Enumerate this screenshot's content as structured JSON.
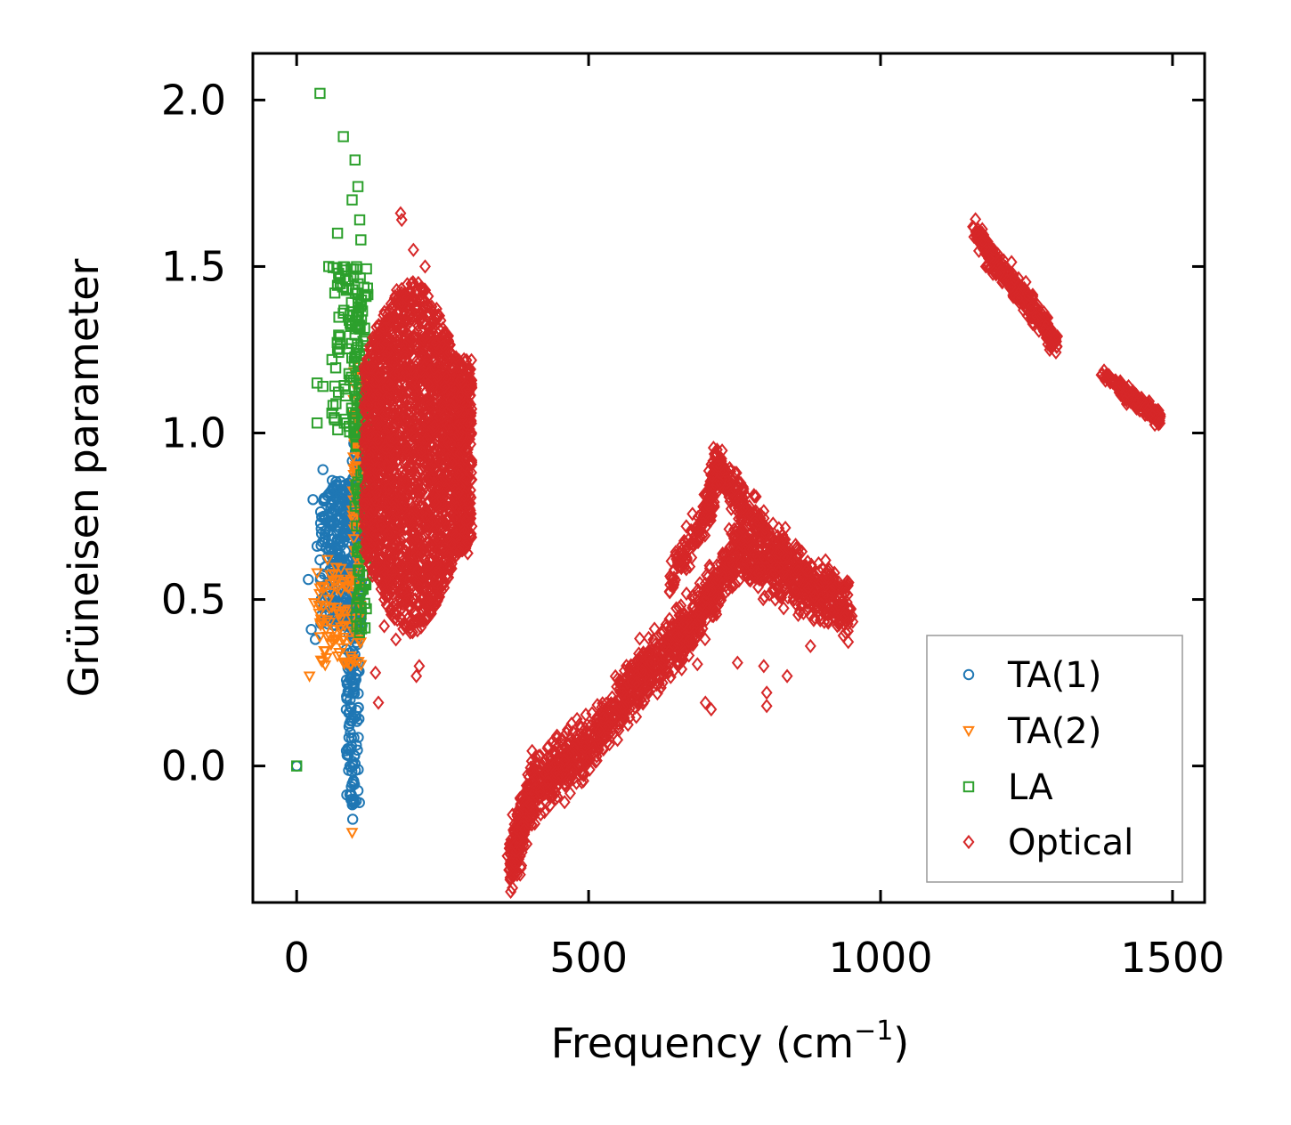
{
  "chart_data": {
    "type": "scatter",
    "title": "",
    "xlabel_main": "Frequency (cm",
    "xlabel_sup": "−1",
    "xlabel_close": ")",
    "ylabel": "Grüneisen parameter",
    "xlim": [
      -75,
      1555
    ],
    "ylim": [
      -0.41,
      2.14
    ],
    "xticks": [
      0,
      500,
      1000,
      1500
    ],
    "xtick_labels": [
      "0",
      "500",
      "1000",
      "1500"
    ],
    "yticks": [
      0.0,
      0.5,
      1.0,
      1.5,
      2.0
    ],
    "ytick_labels": [
      "0.0",
      "0.5",
      "1.0",
      "1.5",
      "2.0"
    ],
    "legend_position": "lower-right",
    "series": [
      {
        "name": "TA(1)",
        "label": "TA(1)",
        "marker": "circle",
        "color": "#1f77b4",
        "anchors": [
          {
            "x": 0,
            "y": 0.0
          },
          {
            "x": 20,
            "y": 0.56
          },
          {
            "x": 28,
            "y": 0.8
          },
          {
            "x": 35,
            "y": 0.66
          },
          {
            "x": 45,
            "y": 0.89
          },
          {
            "x": 25,
            "y": 0.41
          },
          {
            "x": 32,
            "y": 0.38
          },
          {
            "x": 50,
            "y": 0.45
          },
          {
            "x": 60,
            "y": 0.55
          },
          {
            "x": 70,
            "y": 0.74
          },
          {
            "x": 80,
            "y": 0.84
          },
          {
            "x": 85,
            "y": 0.35
          },
          {
            "x": 88,
            "y": 0.25
          },
          {
            "x": 92,
            "y": 0.1
          },
          {
            "x": 95,
            "y": -0.1
          },
          {
            "x": 96,
            "y": -0.16
          },
          {
            "x": 100,
            "y": 0.15
          },
          {
            "x": 104,
            "y": 0.97
          },
          {
            "x": 110,
            "y": 0.62
          }
        ],
        "bands": [
          {
            "x0": 40,
            "x1": 112,
            "y0": 0.42,
            "y1": 0.86,
            "n": 340
          },
          {
            "x0": 85,
            "x1": 108,
            "y0": -0.12,
            "y1": 0.45,
            "n": 120
          },
          {
            "x0": 95,
            "x1": 112,
            "y0": 0.7,
            "y1": 0.98,
            "n": 70
          }
        ]
      },
      {
        "name": "TA(2)",
        "label": "TA(2)",
        "marker": "triangle-down",
        "color": "#ff7f0e",
        "anchors": [
          {
            "x": 22,
            "y": 0.27
          },
          {
            "x": 30,
            "y": 0.49
          },
          {
            "x": 35,
            "y": 0.58
          },
          {
            "x": 40,
            "y": 0.43
          },
          {
            "x": 55,
            "y": 0.5
          },
          {
            "x": 65,
            "y": 0.38
          },
          {
            "x": 70,
            "y": 0.33
          },
          {
            "x": 75,
            "y": 0.44
          },
          {
            "x": 95,
            "y": -0.2
          },
          {
            "x": 100,
            "y": 0.88
          },
          {
            "x": 105,
            "y": 1.1
          },
          {
            "x": 110,
            "y": 1.17
          }
        ],
        "bands": [
          {
            "x0": 35,
            "x1": 112,
            "y0": 0.3,
            "y1": 0.62,
            "n": 90
          },
          {
            "x0": 95,
            "x1": 114,
            "y0": 0.62,
            "y1": 1.2,
            "n": 70
          }
        ]
      },
      {
        "name": "LA",
        "label": "LA",
        "marker": "square",
        "color": "#2ca02c",
        "anchors": [
          {
            "x": 0,
            "y": 0.0
          },
          {
            "x": 40,
            "y": 2.02
          },
          {
            "x": 80,
            "y": 1.89
          },
          {
            "x": 100,
            "y": 1.82
          },
          {
            "x": 105,
            "y": 1.74
          },
          {
            "x": 95,
            "y": 1.7
          },
          {
            "x": 70,
            "y": 1.6
          },
          {
            "x": 55,
            "y": 1.5
          },
          {
            "x": 75,
            "y": 1.45
          },
          {
            "x": 35,
            "y": 1.15
          },
          {
            "x": 45,
            "y": 1.14
          },
          {
            "x": 35,
            "y": 1.03
          },
          {
            "x": 65,
            "y": 1.04
          },
          {
            "x": 90,
            "y": 1.02
          },
          {
            "x": 108,
            "y": 1.64
          },
          {
            "x": 110,
            "y": 1.58
          }
        ],
        "bands": [
          {
            "x0": 60,
            "x1": 120,
            "y0": 1.0,
            "y1": 1.5,
            "n": 90
          },
          {
            "x0": 100,
            "x1": 122,
            "y0": 0.4,
            "y1": 1.45,
            "n": 130
          }
        ]
      },
      {
        "name": "Optical",
        "label": "Optical",
        "marker": "diamond",
        "color": "#d62728",
        "anchors": [
          {
            "x": 178,
            "y": 1.66
          },
          {
            "x": 180,
            "y": 1.64
          },
          {
            "x": 200,
            "y": 1.55
          },
          {
            "x": 220,
            "y": 1.5
          },
          {
            "x": 150,
            "y": 0.42
          },
          {
            "x": 170,
            "y": 0.38
          },
          {
            "x": 205,
            "y": 0.27
          },
          {
            "x": 210,
            "y": 0.3
          },
          {
            "x": 135,
            "y": 0.28
          },
          {
            "x": 140,
            "y": 0.19
          },
          {
            "x": 300,
            "y": 0.72
          },
          {
            "x": 290,
            "y": 1.13
          },
          {
            "x": 700,
            "y": 0.19
          },
          {
            "x": 710,
            "y": 0.17
          },
          {
            "x": 755,
            "y": 0.31
          },
          {
            "x": 800,
            "y": 0.3
          },
          {
            "x": 805,
            "y": 0.22
          },
          {
            "x": 805,
            "y": 0.18
          },
          {
            "x": 840,
            "y": 0.27
          },
          {
            "x": 880,
            "y": 0.36
          },
          {
            "x": 720,
            "y": 0.95
          },
          {
            "x": 365,
            "y": -0.31
          }
        ],
        "bands": [
          {
            "x0": 115,
            "x1": 300,
            "y0": 0.4,
            "y1": 1.46,
            "n": 2600,
            "shape": "lobe"
          }
        ],
        "paths": [
          {
            "points": [
              {
                "x": 365,
                "y": -0.3
              },
              {
                "x": 380,
                "y": -0.22
              },
              {
                "x": 400,
                "y": -0.08
              },
              {
                "x": 430,
                "y": -0.03
              },
              {
                "x": 470,
                "y": 0.02
              },
              {
                "x": 510,
                "y": 0.08
              },
              {
                "x": 550,
                "y": 0.18
              },
              {
                "x": 590,
                "y": 0.27
              },
              {
                "x": 640,
                "y": 0.35
              },
              {
                "x": 680,
                "y": 0.43
              },
              {
                "x": 720,
                "y": 0.55
              },
              {
                "x": 760,
                "y": 0.66
              },
              {
                "x": 800,
                "y": 0.6
              },
              {
                "x": 850,
                "y": 0.56
              },
              {
                "x": 900,
                "y": 0.52
              },
              {
                "x": 950,
                "y": 0.47
              }
            ],
            "spread": 0.085,
            "n": 1700
          },
          {
            "points": [
              {
                "x": 640,
                "y": 0.55
              },
              {
                "x": 700,
                "y": 0.75
              },
              {
                "x": 720,
                "y": 0.9
              },
              {
                "x": 760,
                "y": 0.8
              },
              {
                "x": 820,
                "y": 0.66
              },
              {
                "x": 880,
                "y": 0.58
              }
            ],
            "spread": 0.06,
            "n": 450
          },
          {
            "points": [
              {
                "x": 1160,
                "y": 1.61
              },
              {
                "x": 1200,
                "y": 1.5
              },
              {
                "x": 1240,
                "y": 1.42
              },
              {
                "x": 1280,
                "y": 1.33
              },
              {
                "x": 1300,
                "y": 1.27
              }
            ],
            "spread": 0.035,
            "n": 320
          },
          {
            "points": [
              {
                "x": 1380,
                "y": 1.18
              },
              {
                "x": 1420,
                "y": 1.12
              },
              {
                "x": 1450,
                "y": 1.08
              },
              {
                "x": 1480,
                "y": 1.04
              }
            ],
            "spread": 0.022,
            "n": 180
          }
        ]
      }
    ]
  }
}
